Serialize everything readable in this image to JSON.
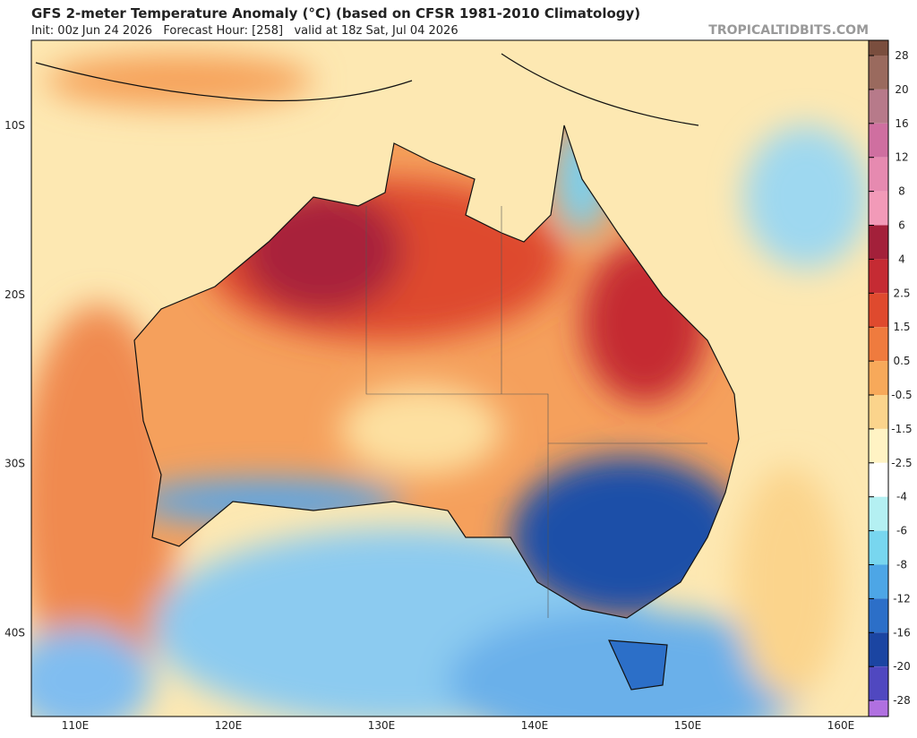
{
  "header": {
    "title": "GFS 2-meter Temperature Anomaly (°C) (based on CFSR 1981-2010 Climatology)",
    "subtitle": "Init: 00z Jun 24 2026   Forecast Hour: [258]   valid at 18z Sat, Jul 04 2026",
    "site": "TROPICALTIDBITS.COM"
  },
  "map": {
    "lat_labels": [
      "10S",
      "20S",
      "30S",
      "40S"
    ],
    "lon_labels": [
      "110E",
      "120E",
      "130E",
      "140E",
      "150E",
      "160E"
    ]
  },
  "colorbar": {
    "labels": [
      "28",
      "20",
      "16",
      "12",
      "8",
      "6",
      "4",
      "2.5",
      "1.5",
      "0.5",
      "-0.5",
      "-1.5",
      "-2.5",
      "-4",
      "-6",
      "-8",
      "-12",
      "-16",
      "-20",
      "-28"
    ],
    "colors": [
      "#7a4e3e",
      "#9a6a5e",
      "#b77a8a",
      "#cf6fa0",
      "#e68ab0",
      "#f29ab8",
      "#a3203a",
      "#c52b33",
      "#df4a2e",
      "#ef7b3e",
      "#f7a95a",
      "#fbd48c",
      "#fff3c4",
      "#ffffff",
      "#b4f0f2",
      "#78d6ef",
      "#4da6e6",
      "#2c6fc8",
      "#1b45a2",
      "#5048c0",
      "#b070e0"
    ]
  }
}
